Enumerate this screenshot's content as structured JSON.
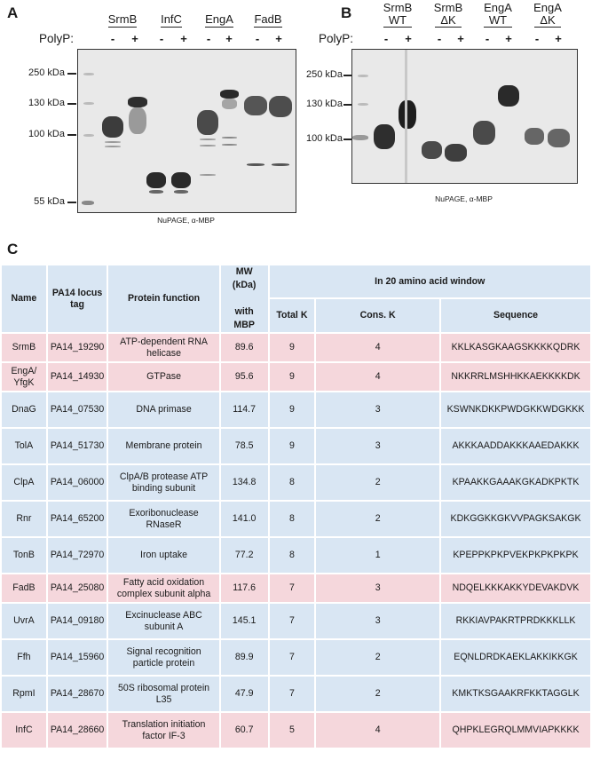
{
  "panel_a": {
    "letter": "A",
    "polyp_label": "PolyP:",
    "lanes": [
      {
        "label": "SrmB",
        "signs": [
          "-",
          "+"
        ]
      },
      {
        "label": "InfC",
        "signs": [
          "-",
          "+"
        ]
      },
      {
        "label": "EngA",
        "signs": [
          "-",
          "+"
        ]
      },
      {
        "label": "FadB",
        "signs": [
          "-",
          "+"
        ]
      }
    ],
    "markers": [
      "250 kDa",
      "130 kDa",
      "100 kDa",
      "55 kDa"
    ],
    "caption": "NuPAGE, α-MBP"
  },
  "panel_b": {
    "letter": "B",
    "polyp_label": "PolyP:",
    "lanes": [
      {
        "label_line1": "SrmB",
        "label_line2": "WT",
        "signs": [
          "-",
          "+"
        ]
      },
      {
        "label_line1": "SrmB",
        "label_line2": "ΔK",
        "signs": [
          "-",
          "+"
        ]
      },
      {
        "label_line1": "EngA",
        "label_line2": "WT",
        "signs": [
          "-",
          "+"
        ]
      },
      {
        "label_line1": "EngA",
        "label_line2": "ΔK",
        "signs": [
          "-",
          "+"
        ]
      }
    ],
    "markers": [
      "250 kDa",
      "130 kDa",
      "100 kDa"
    ],
    "caption": "NuPAGE, α-MBP"
  },
  "panel_c": {
    "letter": "C",
    "headers": {
      "name": "Name",
      "locus": "PA14 locus tag",
      "function": "Protein function",
      "mw_line1": "MW (kDa)",
      "mw_line2": "with MBP",
      "window": "In 20 amino acid window",
      "total_k": "Total K",
      "cons_k": "Cons. K",
      "sequence": "Sequence"
    },
    "rows": [
      {
        "name": "SrmB",
        "locus": "PA14_19290",
        "function": "ATP-dependent RNA helicase",
        "mw": "89.6",
        "total_k": "9",
        "cons_k": "4",
        "sequence": "KKLKASGKAAGSKKKKQDRK",
        "highlight": true
      },
      {
        "name": "EngA/ YfgK",
        "locus": "PA14_14930",
        "function": "GTPase",
        "mw": "95.6",
        "total_k": "9",
        "cons_k": "4",
        "sequence": "NKKRRLMSHHKKAEKKKKDK",
        "highlight": true
      },
      {
        "name": "DnaG",
        "locus": "PA14_07530",
        "function": "DNA primase",
        "mw": "114.7",
        "total_k": "9",
        "cons_k": "3",
        "sequence": "KSWNKDKKPWDGKKWDGKKK",
        "highlight": false
      },
      {
        "name": "TolA",
        "locus": "PA14_51730",
        "function": "Membrane protein",
        "mw": "78.5",
        "total_k": "9",
        "cons_k": "3",
        "sequence": "AKKKAADDAKKKAAEDAKKK",
        "highlight": false
      },
      {
        "name": "ClpA",
        "locus": "PA14_06000",
        "function": "ClpA/B protease ATP binding subunit",
        "mw": "134.8",
        "total_k": "8",
        "cons_k": "2",
        "sequence": "KPAAKKGAAAKGKADKPKTK",
        "highlight": false
      },
      {
        "name": "Rnr",
        "locus": "PA14_65200",
        "function": "Exoribonuclease RNaseR",
        "mw": "141.0",
        "total_k": "8",
        "cons_k": "2",
        "sequence": "KDKGGKKGKVVPAGKSAKGK",
        "highlight": false
      },
      {
        "name": "TonB",
        "locus": "PA14_72970",
        "function": "Iron uptake",
        "mw": "77.2",
        "total_k": "8",
        "cons_k": "1",
        "sequence": "KPEPPKPKPVEKPKPKPKPK",
        "highlight": false
      },
      {
        "name": "FadB",
        "locus": "PA14_25080",
        "function": "Fatty acid oxidation complex subunit alpha",
        "mw": "117.6",
        "total_k": "7",
        "cons_k": "3",
        "sequence": "NDQELKKKAKKYDEVAKDVK",
        "highlight": true
      },
      {
        "name": "UvrA",
        "locus": "PA14_09180",
        "function": "Excinuclease ABC subunit A",
        "mw": "145.1",
        "total_k": "7",
        "cons_k": "3",
        "sequence": "RKKIAVPAKRTPRDKKKLLK",
        "highlight": false
      },
      {
        "name": "Ffh",
        "locus": "PA14_15960",
        "function": "Signal recognition particle protein",
        "mw": "89.9",
        "total_k": "7",
        "cons_k": "2",
        "sequence": "EQNLDRDKAEKLAKKIKKGK",
        "highlight": false
      },
      {
        "name": "RpmI",
        "locus": "PA14_28670",
        "function": "50S ribosomal protein L35",
        "mw": "47.9",
        "total_k": "7",
        "cons_k": "2",
        "sequence": "KMKTKSGAAKRFKKTAGGLK",
        "highlight": false
      },
      {
        "name": "InfC",
        "locus": "PA14_28660",
        "function": "Translation initiation factor IF-3",
        "mw": "60.7",
        "total_k": "5",
        "cons_k": "4",
        "sequence": "QHPKLEGRQLMMVIAPKKKK",
        "highlight": true
      }
    ]
  },
  "colors": {
    "highlight_row": "#f5d7dc",
    "normal_row": "#d9e6f3",
    "header": "#d9e6f3",
    "blot_bg": "#e9e9e9"
  }
}
